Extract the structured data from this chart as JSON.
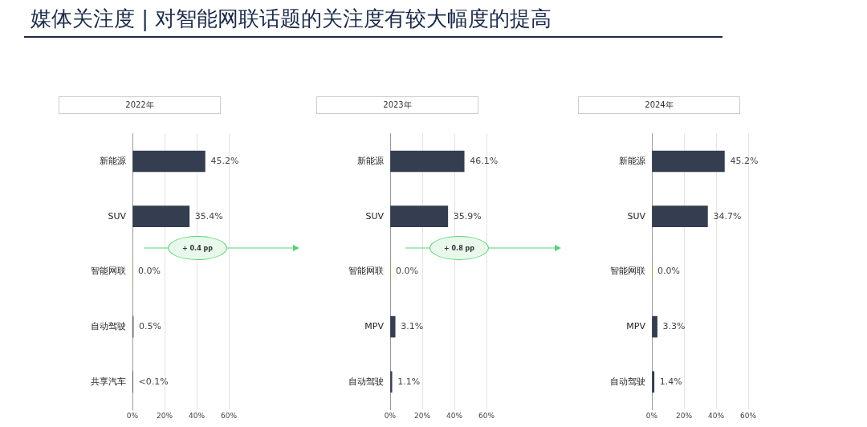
{
  "chart_data": [
    {
      "type": "bar",
      "orientation": "horizontal",
      "title": "2022年",
      "annotations": [
        "媒体关注度 | 对智能网联话题的关注度有较大幅度的提高"
      ],
      "categories": [
        "新能源",
        "SUV",
        "智能网联",
        "自动驾驶",
        "共享汽车"
      ],
      "values": [
        45.2,
        35.4,
        0.0,
        0.5,
        0.05
      ],
      "value_labels": [
        "45.2%",
        "35.4%",
        "0.0%",
        "0.5%",
        "<0.1%"
      ],
      "colors": [
        "#343e50",
        "#343e50",
        "#b8962e",
        "#343e50",
        "#343e50"
      ],
      "xlim": [
        0,
        60
      ],
      "xticks": [
        {
          "value": 0,
          "label": "0%"
        },
        {
          "value": 20,
          "label": "20%"
        },
        {
          "value": 40,
          "label": "40%"
        },
        {
          "value": 60,
          "label": "60%"
        }
      ],
      "grid": "x"
    },
    {
      "type": "bar",
      "orientation": "horizontal",
      "title": "2023年",
      "annotations": [
        "+ 0.4 pp"
      ],
      "categories": [
        "新能源",
        "SUV",
        "智能网联",
        "MPV",
        "自动驾驶"
      ],
      "values": [
        46.1,
        35.9,
        0.0,
        3.1,
        1.1
      ],
      "value_labels": [
        "46.1%",
        "35.9%",
        "0.0%",
        "3.1%",
        "1.1%"
      ],
      "colors": [
        "#343e50",
        "#343e50",
        "#b8962e",
        "#343e50",
        "#343e50"
      ],
      "xlim": [
        0,
        60
      ],
      "xticks": [
        {
          "value": 0,
          "label": "0%"
        },
        {
          "value": 20,
          "label": "20%"
        },
        {
          "value": 40,
          "label": "40%"
        },
        {
          "value": 60,
          "label": "60%"
        }
      ],
      "grid": "x"
    },
    {
      "type": "bar",
      "orientation": "horizontal",
      "title": "2024年",
      "annotations": [
        "+ 0.8 pp"
      ],
      "categories": [
        "新能源",
        "SUV",
        "智能网联",
        "MPV",
        "自动驾驶"
      ],
      "values": [
        45.2,
        34.7,
        0.0,
        3.3,
        1.4
      ],
      "value_labels": [
        "45.2%",
        "34.7%",
        "0.0%",
        "3.3%",
        "1.4%"
      ],
      "colors": [
        "#343e50",
        "#343e50",
        "#b8962e",
        "#343e50",
        "#343e50"
      ],
      "xlim": [
        0,
        60
      ],
      "xticks": [
        {
          "value": 0,
          "label": "0%"
        },
        {
          "value": 20,
          "label": "20%"
        },
        {
          "value": 40,
          "label": "40%"
        },
        {
          "value": 60,
          "label": "60%"
        }
      ],
      "grid": "x"
    }
  ]
}
